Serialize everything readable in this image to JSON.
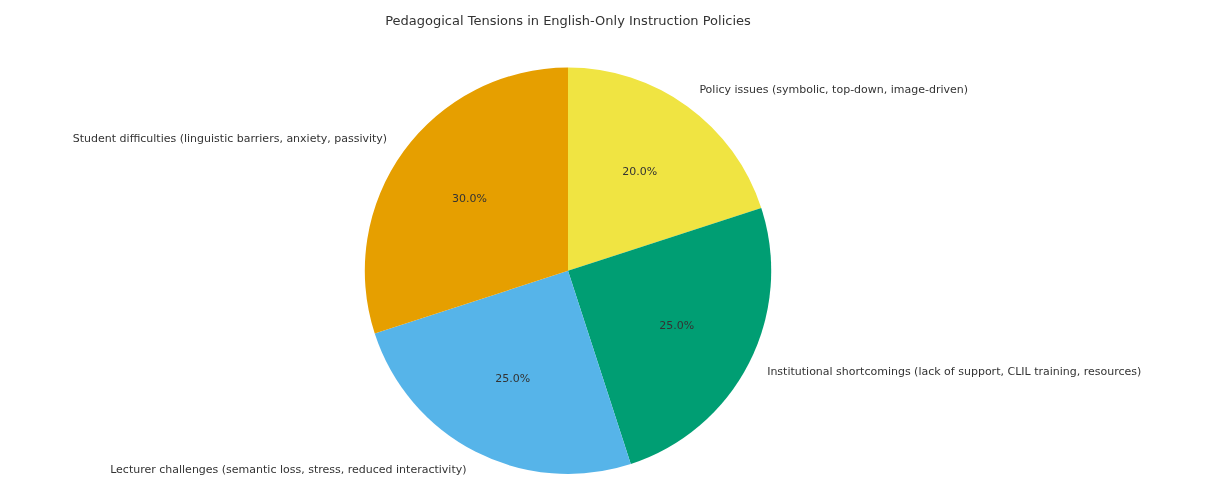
{
  "chart_data": {
    "type": "pie",
    "title": "Pedagogical Tensions in English-Only Instruction Policies",
    "categories": [
      "Policy issues (symbolic, top-down, image-driven)",
      "Institutional shortcomings (lack of support, CLIL training, resources)",
      "Lecturer challenges (semantic loss, stress, reduced interactivity)",
      "Student difficulties (linguistic barriers, anxiety, passivity)"
    ],
    "values": [
      20,
      25,
      25,
      30
    ],
    "colors": [
      "#f0e442",
      "#009e73",
      "#56b4e9",
      "#e69f00"
    ],
    "value_labels": [
      "20.0%",
      "25.0%",
      "25.0%",
      "30.0%"
    ],
    "legend": false
  }
}
